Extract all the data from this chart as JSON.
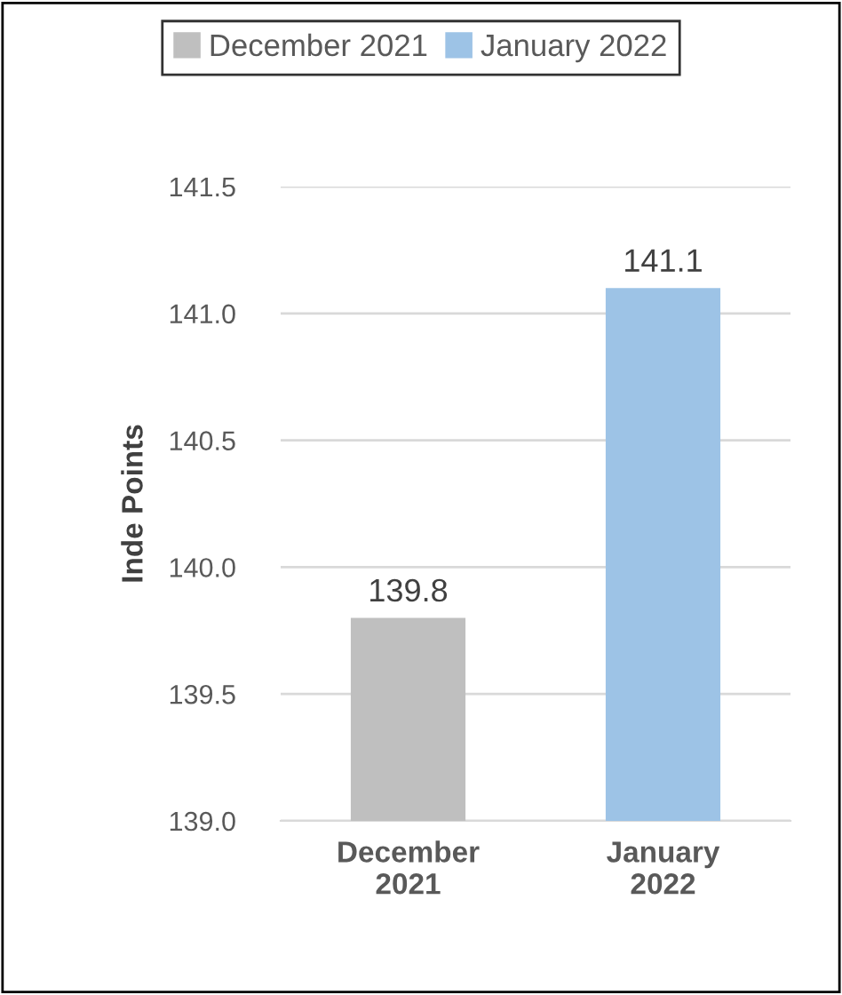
{
  "chart_data": {
    "type": "bar",
    "ylabel": "Inde Points",
    "categories": [
      "December 2021",
      "January 2022"
    ],
    "series": [
      {
        "name": "December 2021",
        "color": "#bfbfbf",
        "values": [
          139.8,
          null
        ]
      },
      {
        "name": "January 2022",
        "color": "#9dc3e6",
        "values": [
          null,
          141.1
        ]
      }
    ],
    "ylim": [
      139.0,
      141.5
    ],
    "yticks": [
      {
        "value": 139.0,
        "label": "139.0"
      },
      {
        "value": 139.5,
        "label": "139.5"
      },
      {
        "value": 140.0,
        "label": "140.0"
      },
      {
        "value": 140.5,
        "label": "140.5"
      },
      {
        "value": 141.0,
        "label": "141.0"
      },
      {
        "value": 141.5,
        "label": "141.5"
      }
    ],
    "grid": "y",
    "legend": "top",
    "data_labels": true
  }
}
